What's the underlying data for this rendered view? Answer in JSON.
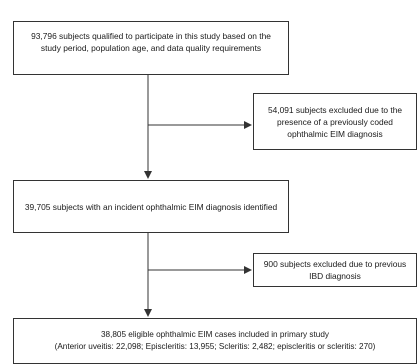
{
  "diagram": {
    "steps": [
      {
        "text": "93,796 subjects qualified to participate in this study based on the study period, population age, and data quality requirements"
      },
      {
        "text": "54,091 subjects excluded due to the presence of a previously coded ophthalmic EIM diagnosis"
      },
      {
        "text": "39,705 subjects with an incident ophthalmic EIM diagnosis identified"
      },
      {
        "text": "900 subjects excluded due to previous IBD diagnosis"
      },
      {
        "line1": "38,805 eligible ophthalmic EIM cases included in primary study",
        "line2": "(Anterior uveitis: 22,098; Episcleritis: 13,955; Scleritis: 2,482; episcleritis or scleritis: 270)"
      }
    ],
    "colors": {
      "border": "#333333",
      "arrow": "#333333",
      "text": "#1a1a1a"
    }
  }
}
